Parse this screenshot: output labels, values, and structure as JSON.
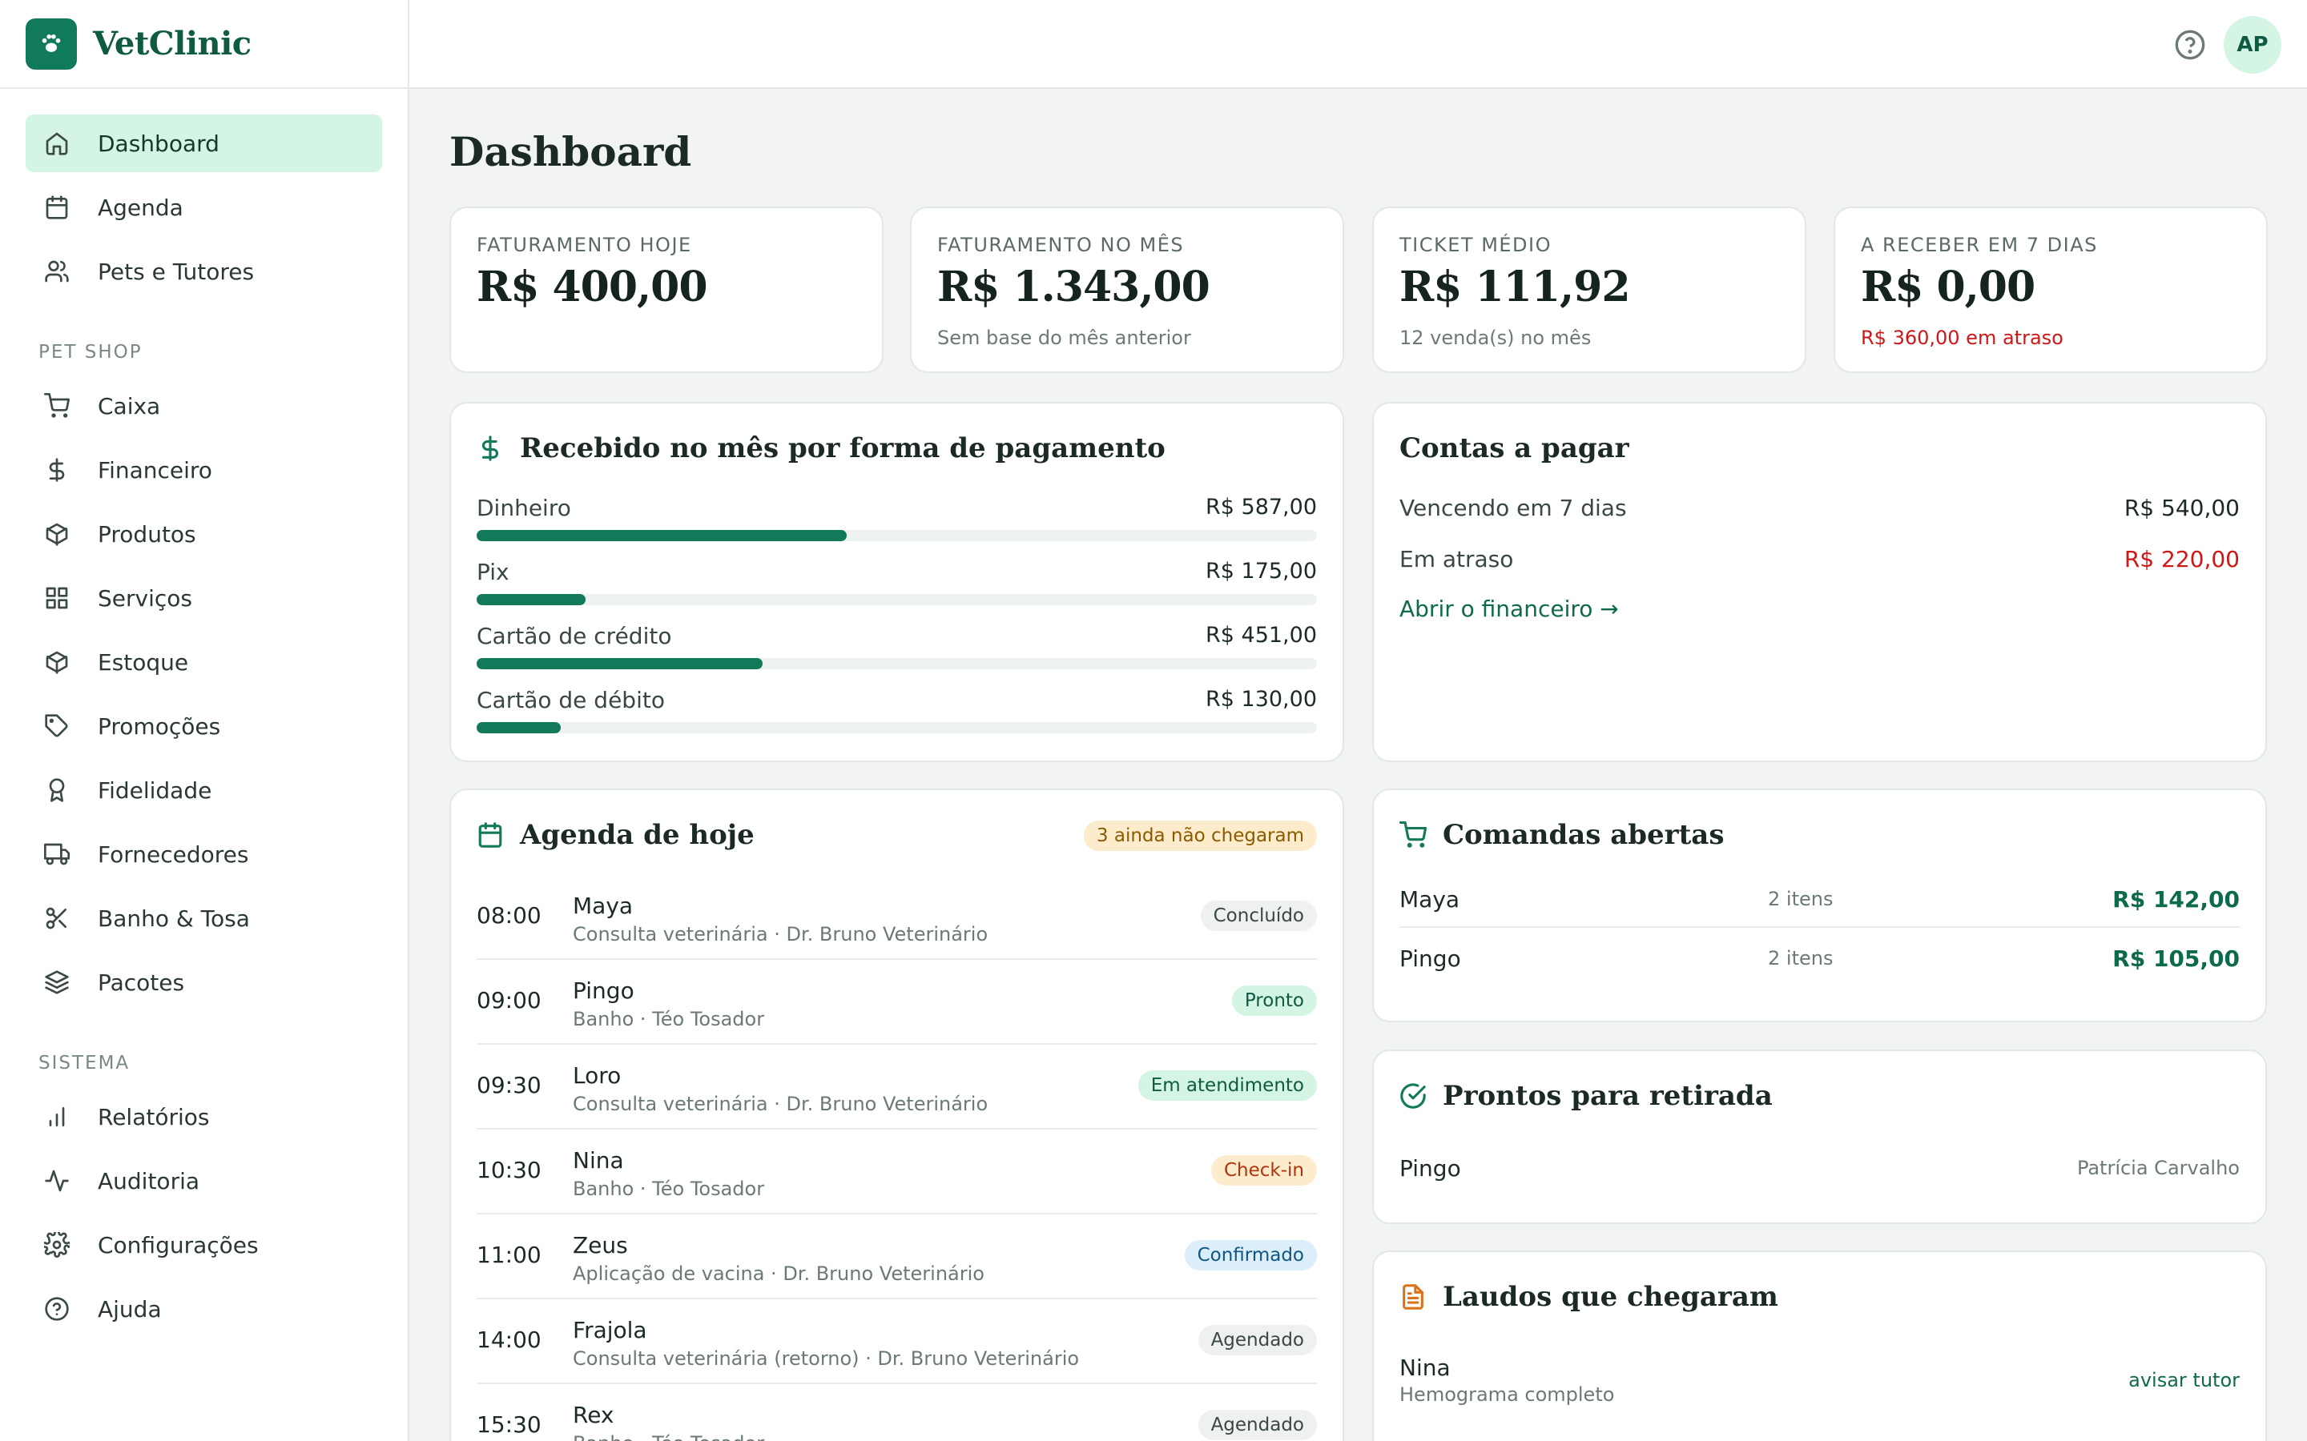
{
  "brand": {
    "name": "VetClinic"
  },
  "header": {
    "avatar_initials": "AP"
  },
  "sidebar": {
    "main_items": [
      {
        "label": "Dashboard",
        "icon": "home-icon",
        "active": true
      },
      {
        "label": "Agenda",
        "icon": "calendar-icon"
      },
      {
        "label": "Pets e Tutores",
        "icon": "users-icon"
      }
    ],
    "petshop_title": "PET SHOP",
    "petshop_items": [
      {
        "label": "Caixa",
        "icon": "cart-icon"
      },
      {
        "label": "Financeiro",
        "icon": "dollar-icon"
      },
      {
        "label": "Produtos",
        "icon": "box-icon"
      },
      {
        "label": "Serviços",
        "icon": "grid-icon"
      },
      {
        "label": "Estoque",
        "icon": "box-icon"
      },
      {
        "label": "Promoções",
        "icon": "tag-icon"
      },
      {
        "label": "Fidelidade",
        "icon": "award-icon"
      },
      {
        "label": "Fornecedores",
        "icon": "truck-icon"
      },
      {
        "label": "Banho & Tosa",
        "icon": "scissors-icon"
      },
      {
        "label": "Pacotes",
        "icon": "layers-icon"
      }
    ],
    "sistema_title": "SISTEMA",
    "sistema_items": [
      {
        "label": "Relatórios",
        "icon": "bar-chart-icon"
      },
      {
        "label": "Auditoria",
        "icon": "activity-icon"
      },
      {
        "label": "Configurações",
        "icon": "gear-icon"
      },
      {
        "label": "Ajuda",
        "icon": "help-icon"
      }
    ]
  },
  "main": {
    "title": "Dashboard",
    "kpis": [
      {
        "label": "FATURAMENTO HOJE",
        "value": "R$ 400,00",
        "sub": ""
      },
      {
        "label": "FATURAMENTO NO MÊS",
        "value": "R$ 1.343,00",
        "sub": "Sem base do mês anterior"
      },
      {
        "label": "TICKET MÉDIO",
        "value": "R$ 111,92",
        "sub": "12 venda(s) no mês"
      },
      {
        "label": "A RECEBER EM 7 DIAS",
        "value": "R$ 0,00",
        "sub": "R$ 360,00 em atraso"
      }
    ],
    "payments": {
      "title": "Recebido no mês por forma de pagamento",
      "rows": [
        {
          "label": "Dinheiro",
          "value": "R$ 587,00",
          "fraction": 0.44
        },
        {
          "label": "Pix",
          "value": "R$ 175,00",
          "fraction": 0.13
        },
        {
          "label": "Cartão de crédito",
          "value": "R$ 451,00",
          "fraction": 0.34
        },
        {
          "label": "Cartão de débito",
          "value": "R$ 130,00",
          "fraction": 0.1
        }
      ]
    },
    "accounts_payable": {
      "title": "Contas a pagar",
      "due_label": "Vencendo em 7 dias",
      "due_value": "R$ 540,00",
      "overdue_label": "Em atraso",
      "overdue_value": "R$ 220,00",
      "link": "Abrir o financeiro →"
    },
    "agenda": {
      "title": "Agenda de hoje",
      "pending_badge": "3 ainda não chegaram",
      "rows": [
        {
          "time": "08:00",
          "pet": "Maya",
          "desc": "Consulta veterinária · Dr. Bruno Veterinário",
          "status": "Concluído",
          "style": "gray"
        },
        {
          "time": "09:00",
          "pet": "Pingo",
          "desc": "Banho · Téo Tosador",
          "status": "Pronto",
          "style": "green"
        },
        {
          "time": "09:30",
          "pet": "Loro",
          "desc": "Consulta veterinária · Dr. Bruno Veterinário",
          "status": "Em atendimento",
          "style": "green"
        },
        {
          "time": "10:30",
          "pet": "Nina",
          "desc": "Banho · Téo Tosador",
          "status": "Check-in",
          "style": "yellow"
        },
        {
          "time": "11:00",
          "pet": "Zeus",
          "desc": "Aplicação de vacina · Dr. Bruno Veterinário",
          "status": "Confirmado",
          "style": "blue"
        },
        {
          "time": "14:00",
          "pet": "Frajola",
          "desc": "Consulta veterinária (retorno) · Dr. Bruno Veterinário",
          "status": "Agendado",
          "style": "gray"
        },
        {
          "time": "15:30",
          "pet": "Rex",
          "desc": "Banho · Téo Tosador",
          "status": "Agendado",
          "style": "gray"
        }
      ]
    },
    "open_tabs": {
      "title": "Comandas abertas",
      "rows": [
        {
          "pet": "Maya",
          "items": "2 itens",
          "total": "R$ 142,00"
        },
        {
          "pet": "Pingo",
          "items": "2 itens",
          "total": "R$ 105,00"
        }
      ]
    },
    "ready_pickup": {
      "title": "Prontos para retirada",
      "pet": "Pingo",
      "tutor": "Patrícia Carvalho"
    },
    "reports": {
      "title": "Laudos que chegaram",
      "pet": "Nina",
      "exam": "Hemograma completo",
      "link": "avisar tutor"
    }
  }
}
